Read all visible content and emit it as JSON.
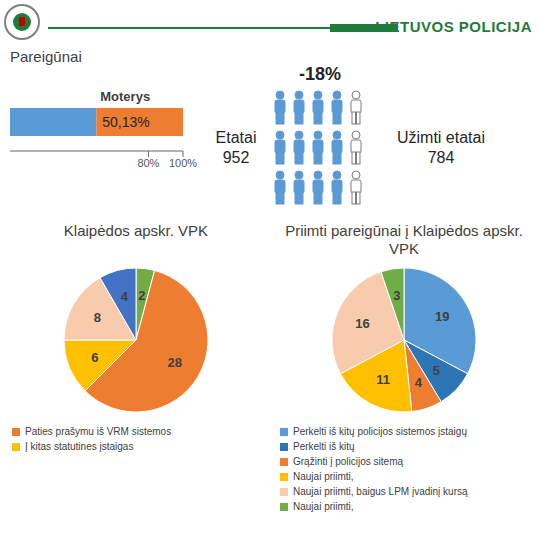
{
  "header": {
    "title": "LIETUVOS POLICIJA"
  },
  "staff": {
    "change": "-18%",
    "positions_label": "Etatai",
    "positions": 952,
    "filled_label": "Užimti etatai",
    "filled": 784
  },
  "chart_data": [
    {
      "type": "bar",
      "title": "Pareigūnai",
      "orientation": "horizontal",
      "stacked": true,
      "categories": [
        null
      ],
      "xlim": [
        0,
        100
      ],
      "xticks": [
        {
          "value": 80,
          "label": "80%"
        },
        {
          "value": 100,
          "label": "100%"
        }
      ],
      "series": [
        {
          "name": null,
          "color": "#5b9bd5",
          "values": [
            49.87
          ]
        },
        {
          "name": "Moterys",
          "color": "#ed7d31",
          "values": [
            50.13
          ],
          "value_labels": [
            "50,13%"
          ],
          "data_labels": true
        }
      ]
    },
    {
      "type": "pie",
      "title": "Klaipėdos apskr. VPK",
      "categories": [
        null,
        "Paties prašymu iš VRM sistemos",
        "Į kitas statutines įstaigas",
        null,
        null
      ],
      "values": [
        2,
        28,
        6,
        8,
        4
      ],
      "colors": [
        "#70ad47",
        "#ed7d31",
        "#ffc000",
        "#f8cbad",
        "#4472c4"
      ],
      "data_labels": true,
      "legend": "bottom"
    },
    {
      "type": "pie",
      "title": "Priimti pareigūnai į Klaipėdos apskr. VPK",
      "categories": [
        "Perkelti iš kitų policijos sistemos įstaigų",
        "Perkelti iš kitų",
        "Grąžinti į policijos sitemą",
        "Naujai priimti,",
        "Naujai priimti, baigus LPM įvadinį kursą",
        "Naujai priimti,"
      ],
      "values": [
        19,
        5,
        4,
        11,
        16,
        3
      ],
      "colors": [
        "#5b9bd5",
        "#2e75b6",
        "#ed7d31",
        "#ffc000",
        "#f8cbad",
        "#70ad47"
      ],
      "data_labels": true,
      "legend": "bottom"
    }
  ]
}
